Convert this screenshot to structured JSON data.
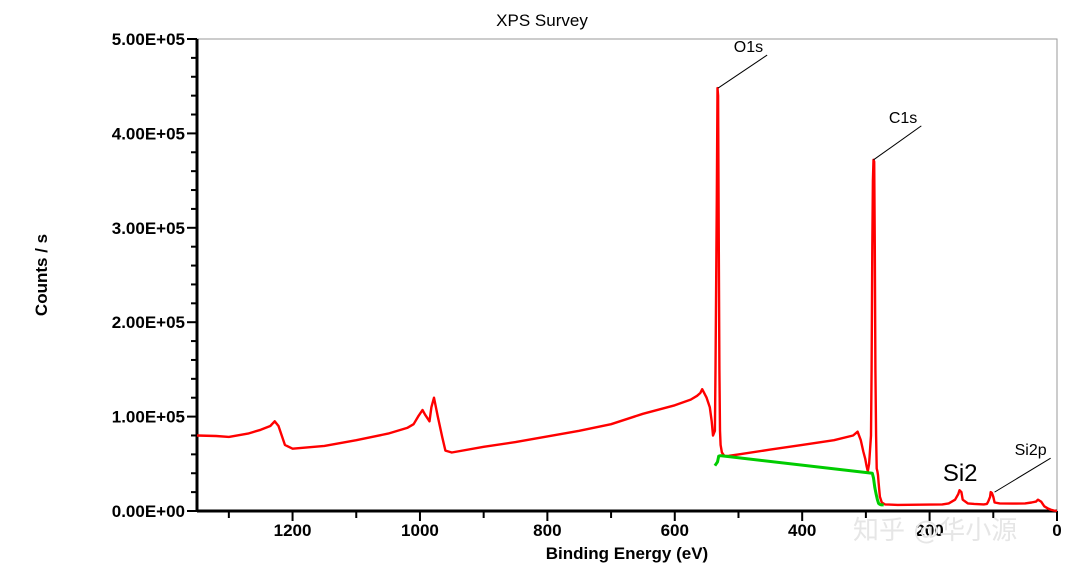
{
  "watermark": "知乎 @华小源",
  "chart_data": {
    "type": "line",
    "title": "XPS Survey",
    "xlabel": "Binding Energy (eV)",
    "ylabel": "Counts / s",
    "xlim": [
      1350,
      0
    ],
    "ylim": [
      0,
      500000
    ],
    "x_reversed": true,
    "grid": false,
    "xticks": [
      {
        "value": 1200,
        "label": "1200"
      },
      {
        "value": 1000,
        "label": "1000"
      },
      {
        "value": 800,
        "label": "800"
      },
      {
        "value": 600,
        "label": "600"
      },
      {
        "value": 400,
        "label": "400"
      },
      {
        "value": 200,
        "label": "200"
      },
      {
        "value": 0,
        "label": "0"
      }
    ],
    "yticks": [
      {
        "value": 0,
        "label": "0.00E+00"
      },
      {
        "value": 100000,
        "label": "1.00E+05"
      },
      {
        "value": 200000,
        "label": "2.00E+05"
      },
      {
        "value": 300000,
        "label": "3.00E+05"
      },
      {
        "value": 400000,
        "label": "4.00E+05"
      },
      {
        "value": 500000,
        "label": "5.00E+05"
      }
    ],
    "series": [
      {
        "color": "#ff0000",
        "x": [
          1350,
          1320,
          1300,
          1270,
          1250,
          1235,
          1228,
          1222,
          1212,
          1200,
          1150,
          1100,
          1050,
          1020,
          1010,
          1003,
          996,
          992,
          985,
          982,
          978,
          972,
          965,
          960,
          950,
          900,
          850,
          800,
          750,
          700,
          650,
          600,
          575,
          565,
          560,
          557,
          550,
          545,
          542,
          540,
          537,
          536,
          534,
          533,
          532,
          531,
          530,
          529,
          528,
          526,
          522,
          515,
          500,
          450,
          400,
          350,
          320,
          313,
          308,
          304,
          301,
          299,
          297,
          295,
          292,
          291,
          290,
          289,
          288,
          287,
          286,
          285,
          284,
          283,
          282,
          281,
          280,
          278,
          275,
          270,
          250,
          200,
          180,
          170,
          160,
          155,
          153,
          150,
          148,
          140,
          130,
          115,
          110,
          108,
          105,
          104,
          102,
          100,
          98,
          90,
          70,
          50,
          40,
          33,
          30,
          25,
          20,
          15,
          10,
          5,
          0
        ],
        "y": [
          80000,
          79500,
          78500,
          82000,
          86000,
          90000,
          95000,
          90000,
          70000,
          66000,
          69000,
          75000,
          82000,
          88000,
          92000,
          100000,
          107000,
          102000,
          95000,
          110000,
          120000,
          100000,
          78000,
          64000,
          62000,
          68000,
          73000,
          79000,
          85000,
          92000,
          103000,
          112000,
          118000,
          122000,
          125000,
          129000,
          120000,
          110000,
          95000,
          80000,
          85000,
          150000,
          330000,
          448000,
          440000,
          300000,
          150000,
          85000,
          70000,
          62000,
          58000,
          58500,
          60000,
          65000,
          70000,
          75000,
          80000,
          84000,
          75000,
          63000,
          55000,
          48000,
          42000,
          50000,
          80000,
          150000,
          280000,
          350000,
          372000,
          370000,
          280000,
          150000,
          80000,
          45000,
          42000,
          38000,
          30000,
          15000,
          9000,
          7000,
          6500,
          6800,
          7000,
          8000,
          12000,
          18000,
          22000,
          20000,
          12000,
          8000,
          7500,
          7000,
          7500,
          10000,
          15000,
          20000,
          19000,
          15000,
          9000,
          8000,
          7800,
          8000,
          9000,
          10000,
          12000,
          10000,
          5000,
          3000,
          1500,
          500,
          0
        ]
      },
      {
        "color": "#00cc00",
        "x": [
          537,
          535,
          533,
          531,
          529,
          527,
          290,
          288,
          286,
          284,
          282,
          280,
          278,
          276,
          274,
          272
        ],
        "y": [
          48000,
          50000,
          52000,
          58000,
          58500,
          58500,
          40000,
          35000,
          25000,
          18000,
          12000,
          8000,
          7000,
          6500,
          6500,
          6500
        ]
      }
    ],
    "annotations": [
      {
        "label": "O1s",
        "x": 532,
        "y": 448000,
        "x2": 455,
        "y2": 483000,
        "size": "normal"
      },
      {
        "label": "C1s",
        "x": 288,
        "y": 372000,
        "x2": 213,
        "y2": 408000,
        "size": "normal"
      },
      {
        "label": "Si2p",
        "x": 98,
        "y": 20000,
        "x2": 10,
        "y2": 56000,
        "size": "normal"
      },
      {
        "label": "Si2",
        "x": 152,
        "y": 32000,
        "size": "large"
      }
    ]
  }
}
